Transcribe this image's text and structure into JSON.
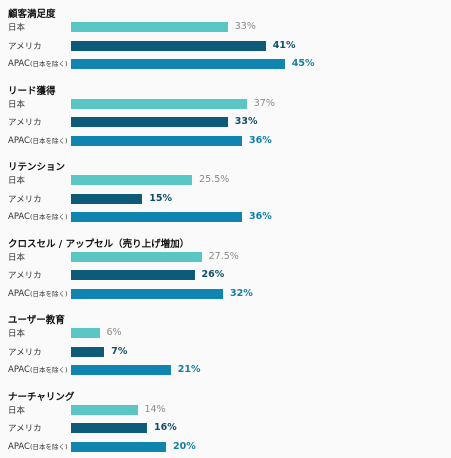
{
  "chart_data": {
    "type": "bar",
    "orientation": "horizontal",
    "unit": "%",
    "xlim": [
      0,
      50
    ],
    "grid": false,
    "series": [
      {
        "key": "japan",
        "label": "日本",
        "color": "#5bc7c4"
      },
      {
        "key": "us",
        "label": "アメリカ",
        "color": "#0d5b78"
      },
      {
        "key": "apac",
        "label": "APAC",
        "sublabel": "(日本を除く)",
        "color": "#0f85b0"
      }
    ],
    "groups": [
      {
        "title": "顧客満足度",
        "values": [
          33,
          41,
          45
        ],
        "value_labels": [
          "33%",
          "41%",
          "45%"
        ]
      },
      {
        "title": "リード獲得",
        "values": [
          37,
          33,
          36
        ],
        "value_labels": [
          "37%",
          "33%",
          "36%"
        ]
      },
      {
        "title": "リテンション",
        "values": [
          25.5,
          15,
          36
        ],
        "value_labels": [
          "25.5%",
          "15%",
          "36%"
        ]
      },
      {
        "title": "クロスセル / アップセル（売り上げ増加）",
        "values": [
          27.5,
          26,
          32
        ],
        "value_labels": [
          "27.5%",
          "26%",
          "32%"
        ]
      },
      {
        "title": "ユーザー教育",
        "values": [
          6,
          7,
          21
        ],
        "value_labels": [
          "6%",
          "7%",
          "21%"
        ]
      },
      {
        "title": "ナーチャリング",
        "values": [
          14,
          16,
          20
        ],
        "value_labels": [
          "14%",
          "16%",
          "20%"
        ]
      }
    ]
  }
}
